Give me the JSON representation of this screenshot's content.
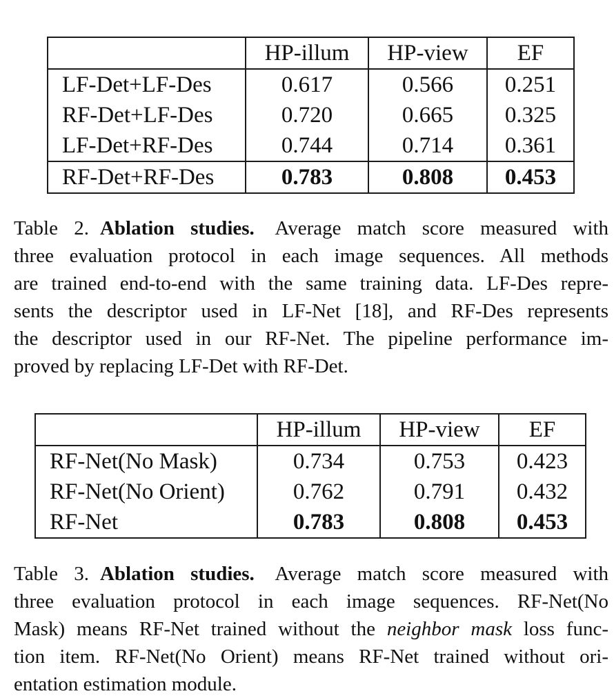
{
  "table2": {
    "headers": [
      "",
      "HP-illum",
      "HP-view",
      "EF"
    ],
    "rows": [
      {
        "method": "LF-Det+LF-Des",
        "hp_illum": "0.617",
        "hp_view": "0.566",
        "ef": "0.251"
      },
      {
        "method": "RF-Det+LF-Des",
        "hp_illum": "0.720",
        "hp_view": "0.665",
        "ef": "0.325"
      },
      {
        "method": "LF-Det+RF-Des",
        "hp_illum": "0.744",
        "hp_view": "0.714",
        "ef": "0.361"
      },
      {
        "method": "RF-Det+RF-Des",
        "hp_illum": "0.783",
        "hp_view": "0.808",
        "ef": "0.453",
        "bold": true
      }
    ]
  },
  "caption2": {
    "label": "Table 2.",
    "title": "Ablation studies.",
    "lines": [
      "Average match score measured with",
      "three evaluation protocol in each image sequences.  All methods",
      "are trained end-to-end with the same training data. LF-Des repre-",
      "sents the descriptor used in LF-Net [18], and RF-Des represents",
      "the descriptor used in our RF-Net.  The pipeline performance im-",
      "proved by replacing LF-Det with RF-Det."
    ]
  },
  "table3": {
    "headers": [
      "",
      "HP-illum",
      "HP-view",
      "EF"
    ],
    "rows": [
      {
        "method": "RF-Net(No Mask)",
        "hp_illum": "0.734",
        "hp_view": "0.753",
        "ef": "0.423"
      },
      {
        "method": "RF-Net(No Orient)",
        "hp_illum": "0.762",
        "hp_view": "0.791",
        "ef": "0.432"
      },
      {
        "method": "RF-Net",
        "hp_illum": "0.783",
        "hp_view": "0.808",
        "ef": "0.453",
        "bold": true
      }
    ]
  },
  "caption3": {
    "label": "Table 3.",
    "title": "Ablation studies.",
    "line1": "Average match score measured with",
    "line2": "three evaluation protocol in each image sequences.  RF-Net(No",
    "line3_pre": "Mask) means RF-Net trained without the",
    "line3_em": "neighbor mask",
    "line3_post": "loss func-",
    "line4": "tion item.  RF-Net(No Orient) means RF-Net trained without ori-",
    "line5": "entation estimation module."
  }
}
